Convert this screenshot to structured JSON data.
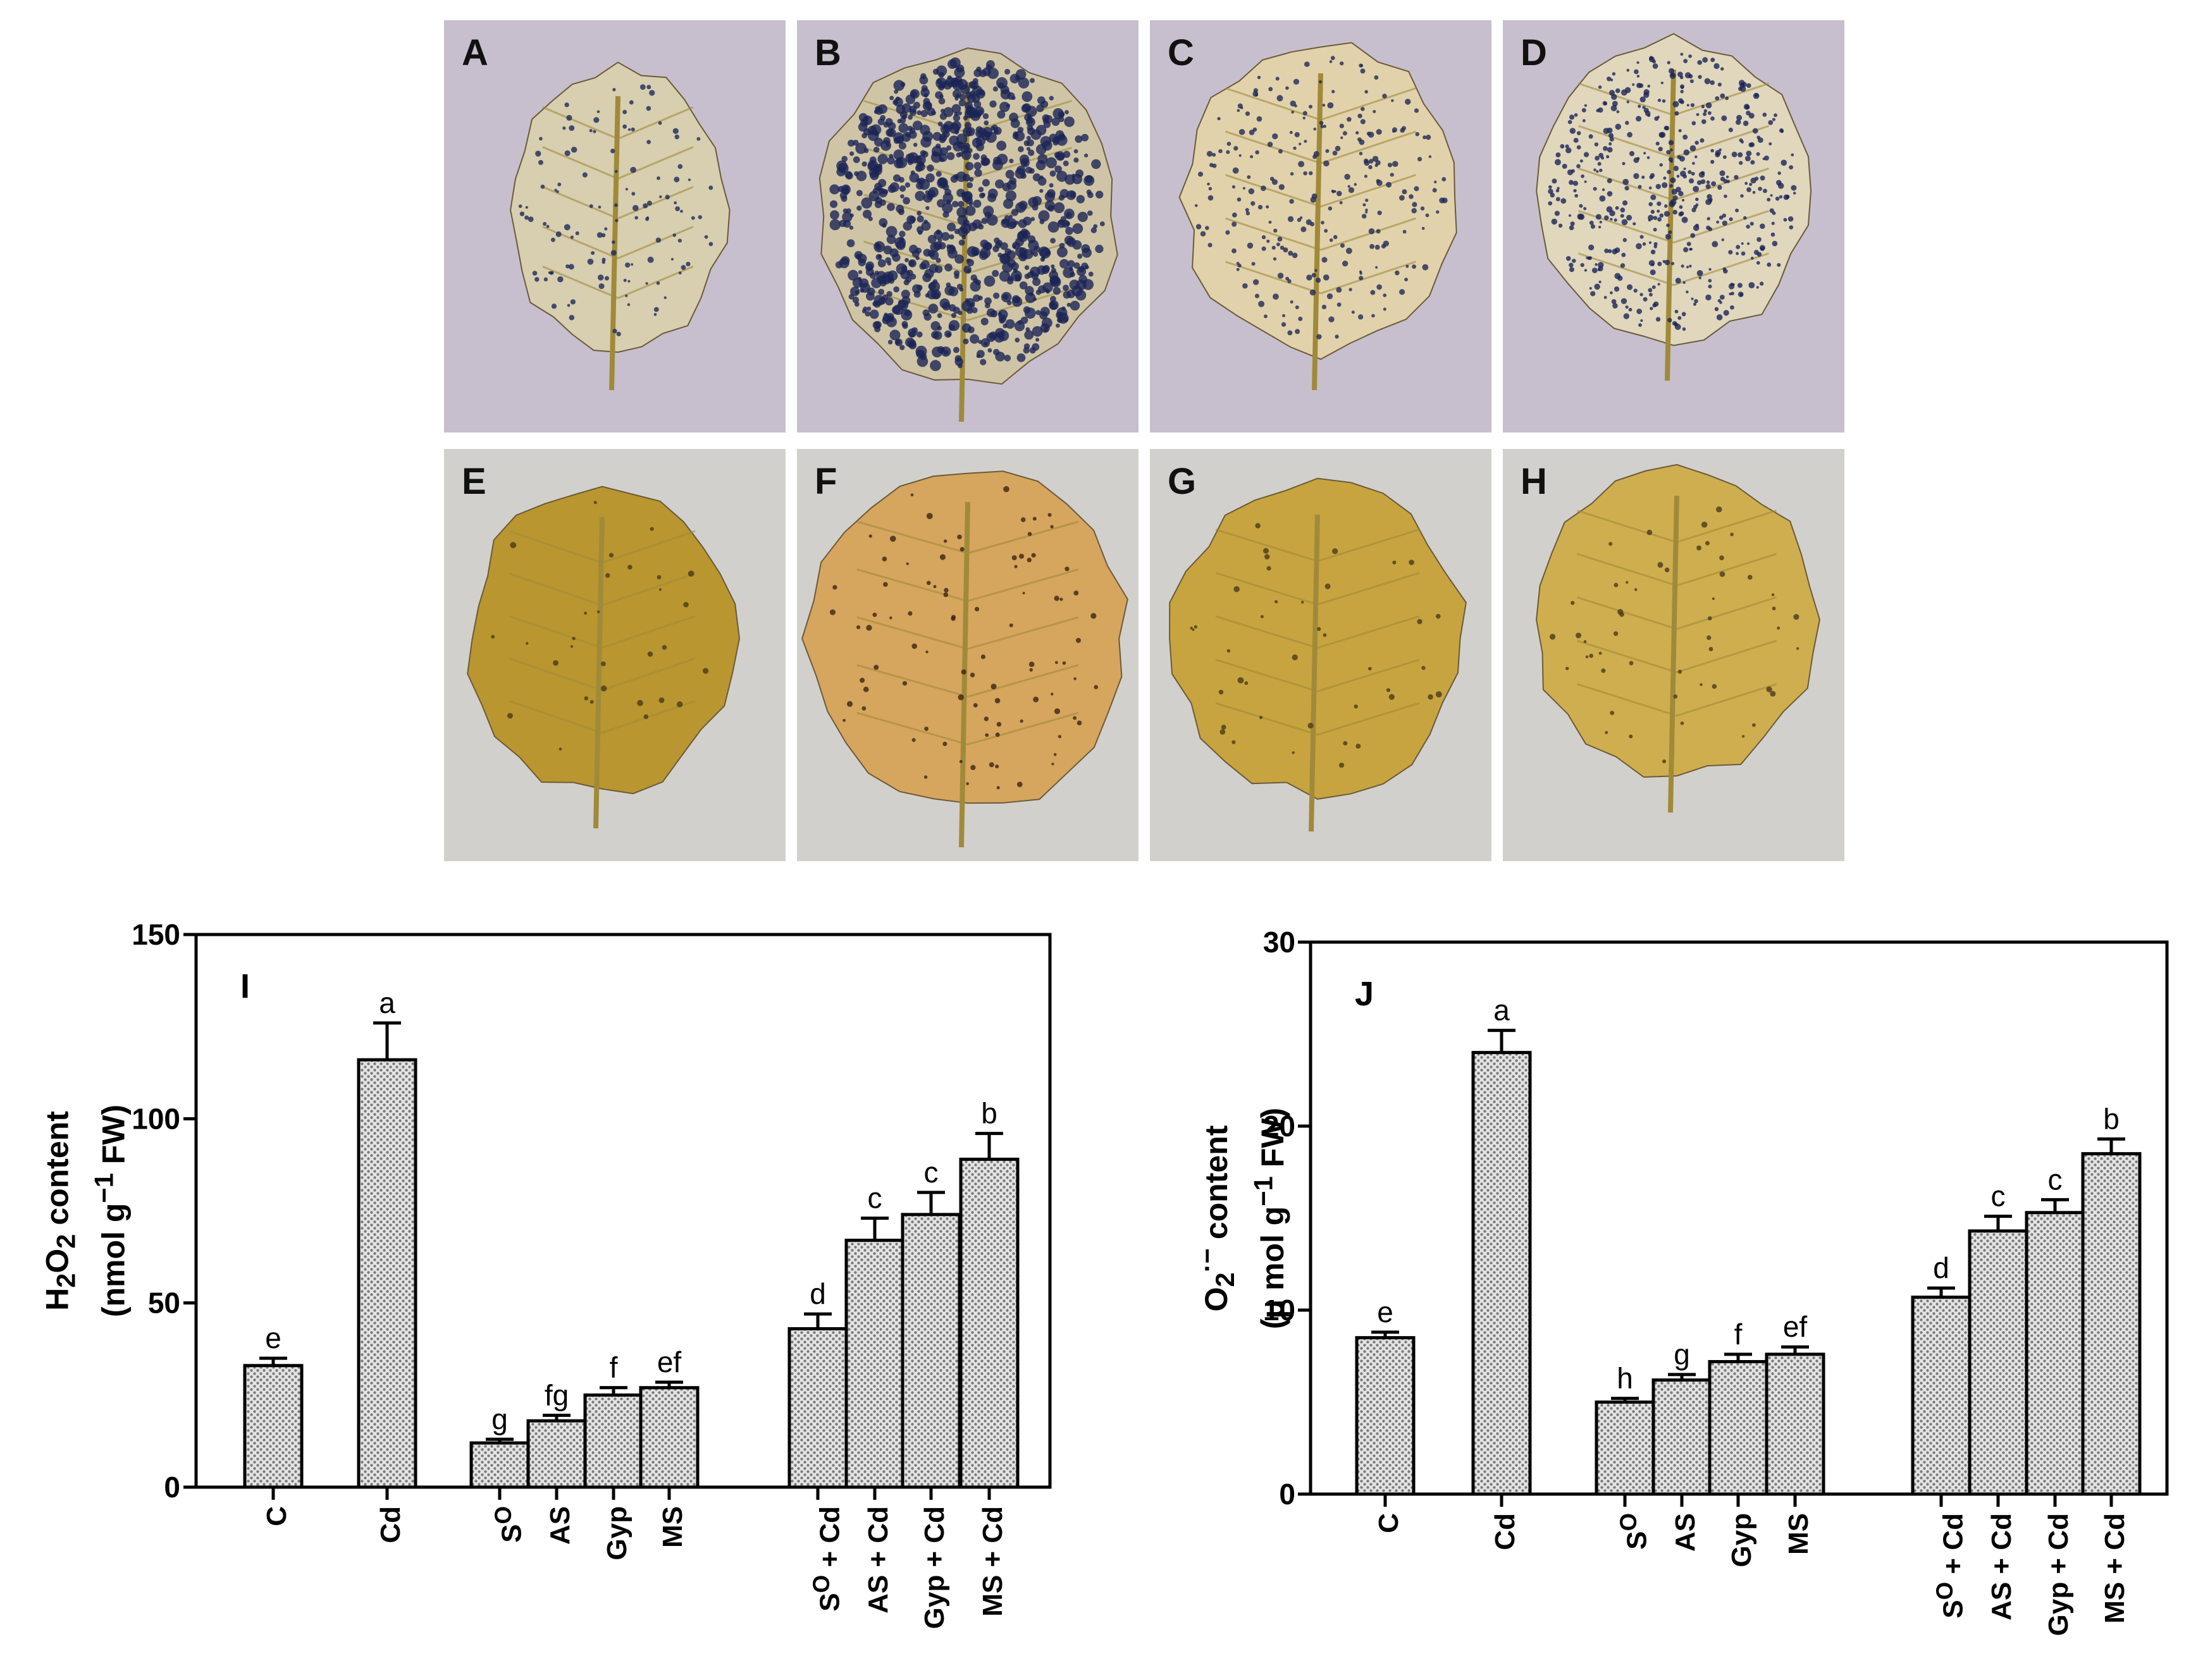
{
  "panels": [
    {
      "label": "A",
      "kind": "nbt"
    },
    {
      "label": "B",
      "kind": "nbt"
    },
    {
      "label": "C",
      "kind": "nbt"
    },
    {
      "label": "D",
      "kind": "nbt"
    },
    {
      "label": "E",
      "kind": "dab"
    },
    {
      "label": "F",
      "kind": "dab"
    },
    {
      "label": "G",
      "kind": "dab"
    },
    {
      "label": "H",
      "kind": "dab"
    }
  ],
  "chart_data": [
    {
      "type": "bar",
      "panel_label": "I",
      "ylabel_lines": [
        "H<sub>2</sub>O<sub>2</sub> content",
        "(nmol g<sup>−1</sup> FW)"
      ],
      "ylim": [
        0,
        150
      ],
      "yticks": [
        "0",
        "50",
        "100",
        "150"
      ],
      "categories": [
        "C",
        "Cd",
        "S<sup>O</sup>",
        "AS",
        "Gyp",
        "MS",
        "S<sup>O</sup> + Cd",
        "AS + Cd",
        "Gyp + Cd",
        "MS + Cd"
      ],
      "values": [
        33,
        116,
        12,
        18,
        25,
        27,
        43,
        67,
        74,
        89
      ],
      "errors": [
        2,
        10,
        1,
        1.5,
        2,
        1.5,
        4,
        6,
        6,
        7
      ],
      "letters": [
        "e",
        "a",
        "g",
        "fg",
        "f",
        "ef",
        "d",
        "c",
        "c",
        "b"
      ]
    },
    {
      "type": "bar",
      "panel_label": "J",
      "ylabel_lines": [
        "O<sub>2</sub><sup>·−</sup> content",
        "(μ mol g<sup>−1</sup> FW)"
      ],
      "ylim": [
        0,
        30
      ],
      "yticks": [
        "0",
        "10",
        "20",
        "30"
      ],
      "categories": [
        "C",
        "Cd",
        "S<sup>O</sup>",
        "AS",
        "Gyp",
        "MS",
        "S<sup>O</sup> + Cd",
        "AS + Cd",
        "Gyp + Cd",
        "MS + Cd"
      ],
      "values": [
        8.5,
        24,
        5,
        6.2,
        7.2,
        7.6,
        10.7,
        14.3,
        15.3,
        18.5
      ],
      "errors": [
        0.3,
        1.2,
        0.2,
        0.3,
        0.4,
        0.4,
        0.5,
        0.8,
        0.7,
        0.8
      ],
      "letters": [
        "e",
        "a",
        "h",
        "g",
        "f",
        "ef",
        "d",
        "c",
        "c",
        "b"
      ]
    }
  ]
}
